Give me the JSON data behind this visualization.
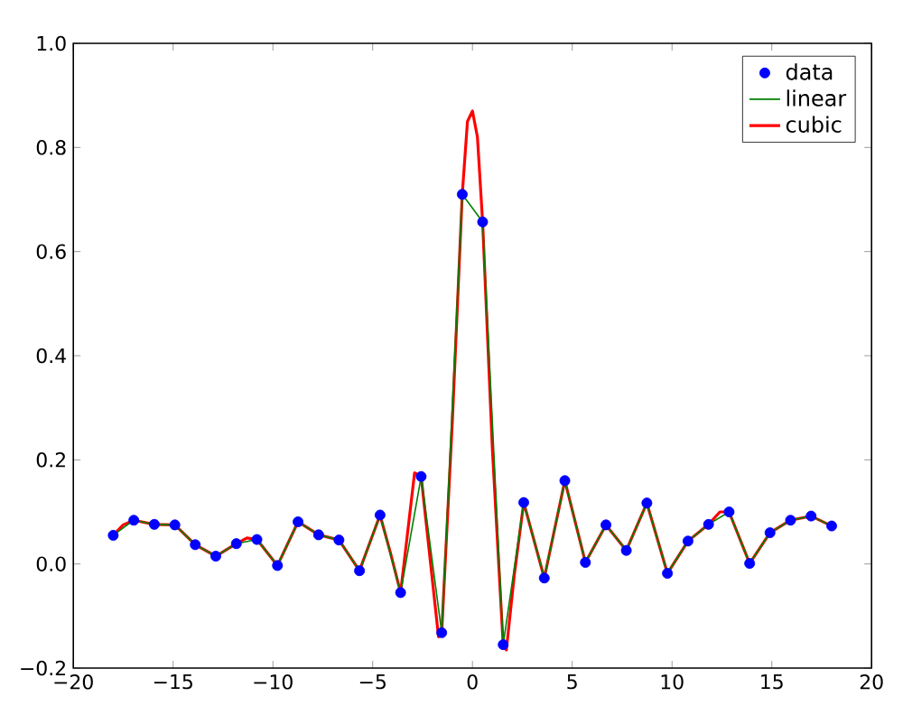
{
  "chart_data": {
    "type": "line",
    "xlim": [
      -20,
      20
    ],
    "ylim": [
      -0.2,
      1.0
    ],
    "xticks": [
      {
        "value": -20,
        "label": "−20"
      },
      {
        "value": -15,
        "label": "−15"
      },
      {
        "value": -10,
        "label": "−10"
      },
      {
        "value": -5,
        "label": "−5"
      },
      0,
      5,
      10,
      15,
      20
    ],
    "yticks": [
      {
        "value": -0.2,
        "label": "−0.2"
      },
      {
        "value": 0,
        "label": "0.0"
      },
      {
        "value": 0.2,
        "label": "0.2"
      },
      {
        "value": 0.4,
        "label": "0.4"
      },
      {
        "value": 0.6,
        "label": "0.6"
      },
      {
        "value": 0.8,
        "label": "0.8"
      },
      {
        "value": 1.0,
        "label": "1.0"
      }
    ],
    "grid": false,
    "legend": "top right",
    "series": [
      {
        "name": "data",
        "type": "scatter",
        "color": "#0000ff",
        "x": [
          -18,
          -16.97,
          -15.94,
          -14.91,
          -13.89,
          -12.86,
          -11.83,
          -10.8,
          -9.77,
          -8.74,
          -7.71,
          -6.69,
          -5.66,
          -4.63,
          -3.6,
          -2.57,
          -1.54,
          -0.51,
          0.51,
          1.54,
          2.57,
          3.6,
          4.63,
          5.66,
          6.69,
          7.71,
          8.74,
          9.77,
          10.8,
          11.83,
          12.86,
          13.89,
          14.91,
          15.94,
          16.97,
          18
        ],
        "values": [
          0.055,
          0.084,
          0.076,
          0.075,
          0.037,
          0.015,
          0.039,
          0.047,
          -0.003,
          0.081,
          0.056,
          0.046,
          -0.013,
          0.094,
          -0.055,
          0.168,
          -0.132,
          0.71,
          0.657,
          -0.155,
          0.118,
          -0.027,
          0.16,
          0.003,
          0.075,
          0.026,
          0.117,
          -0.018,
          0.044,
          0.076,
          0.1,
          0.001,
          0.06,
          0.084,
          0.092,
          0.073
        ]
      },
      {
        "name": "linear",
        "color": "#008000",
        "x": [
          -18,
          -16.97,
          -15.94,
          -14.91,
          -13.89,
          -12.86,
          -11.83,
          -10.8,
          -9.77,
          -8.74,
          -7.71,
          -6.69,
          -5.66,
          -4.63,
          -3.6,
          -2.57,
          -1.54,
          -0.51,
          0.51,
          1.54,
          2.57,
          3.6,
          4.63,
          5.66,
          6.69,
          7.71,
          8.74,
          9.77,
          10.8,
          11.83,
          12.86,
          13.89,
          14.91,
          15.94,
          16.97,
          18
        ],
        "values": [
          0.055,
          0.084,
          0.076,
          0.075,
          0.037,
          0.015,
          0.039,
          0.047,
          -0.003,
          0.081,
          0.056,
          0.046,
          -0.013,
          0.094,
          -0.055,
          0.168,
          -0.132,
          0.71,
          0.657,
          -0.155,
          0.118,
          -0.027,
          0.16,
          0.003,
          0.075,
          0.026,
          0.117,
          -0.018,
          0.044,
          0.076,
          0.1,
          0.001,
          0.06,
          0.084,
          0.092,
          0.073
        ]
      },
      {
        "name": "cubic",
        "color": "#ff0000",
        "x": [
          -18,
          -17.5,
          -16.97,
          -15.94,
          -14.91,
          -13.89,
          -12.86,
          -11.83,
          -11.3,
          -10.8,
          -9.77,
          -8.74,
          -7.71,
          -6.69,
          -5.66,
          -4.63,
          -4.1,
          -3.6,
          -2.9,
          -2.57,
          -1.7,
          -1.54,
          -1.0,
          -0.51,
          -0.25,
          0,
          0.25,
          0.51,
          1.0,
          1.54,
          1.7,
          2.1,
          2.57,
          3.6,
          4.63,
          5.66,
          6.69,
          7.71,
          8.74,
          9.77,
          10.8,
          11.83,
          12.4,
          12.86,
          13.89,
          14.91,
          15.94,
          16.97,
          18
        ],
        "values": [
          0.055,
          0.075,
          0.084,
          0.076,
          0.075,
          0.037,
          0.015,
          0.039,
          0.05,
          0.047,
          -0.003,
          0.081,
          0.056,
          0.046,
          -0.013,
          0.094,
          0.02,
          -0.055,
          0.175,
          0.168,
          -0.14,
          -0.132,
          0.28,
          0.71,
          0.85,
          0.87,
          0.82,
          0.657,
          0.22,
          -0.155,
          -0.165,
          -0.02,
          0.118,
          -0.027,
          0.16,
          0.003,
          0.075,
          0.026,
          0.117,
          -0.018,
          0.044,
          0.076,
          0.1,
          0.1,
          0.001,
          0.06,
          0.084,
          0.092,
          0.073
        ]
      }
    ]
  }
}
